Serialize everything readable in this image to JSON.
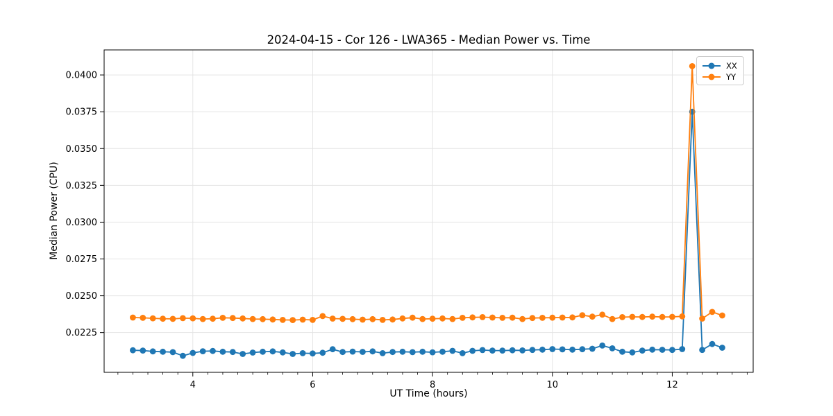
{
  "figure": {
    "title": "2024-04-15 - Cor 126 - LWA365 - Median Power vs. Time"
  },
  "colors": {
    "grid": "#e4e4e4",
    "spine": "#000000",
    "text": "#000000",
    "background": "#ffffff",
    "series_xx": "#1f77b4",
    "series_yy": "#ff7f0e"
  },
  "chart_data": {
    "type": "line",
    "title": "2024-04-15 - Cor 126 - LWA365 - Median Power vs. Time",
    "xlabel": "UT Time (hours)",
    "ylabel": "Median Power (CPU)",
    "xlim": [
      2.52,
      13.35
    ],
    "ylim": [
      0.0198,
      0.0417
    ],
    "grid": true,
    "legend_position": "upper right",
    "xticks": [
      4,
      6,
      8,
      10,
      12
    ],
    "xtick_labels": [
      "4",
      "6",
      "8",
      "10",
      "12"
    ],
    "xtick_minor_step": 0.25,
    "yticks": [
      0.0225,
      0.025,
      0.0275,
      0.03,
      0.0325,
      0.035,
      0.0375,
      0.04
    ],
    "ytick_labels": [
      "0.0225",
      "0.0250",
      "0.0275",
      "0.0300",
      "0.0325",
      "0.0350",
      "0.0375",
      "0.0400"
    ],
    "x": [
      3.0,
      3.1667,
      3.3333,
      3.5,
      3.6667,
      3.8333,
      4.0,
      4.1667,
      4.3333,
      4.5,
      4.6667,
      4.8333,
      5.0,
      5.1667,
      5.3333,
      5.5,
      5.6667,
      5.8333,
      6.0,
      6.1667,
      6.3333,
      6.5,
      6.6667,
      6.8333,
      7.0,
      7.1667,
      7.3333,
      7.5,
      7.6667,
      7.8333,
      8.0,
      8.1667,
      8.3333,
      8.5,
      8.6667,
      8.8333,
      9.0,
      9.1667,
      9.3333,
      9.5,
      9.6667,
      9.8333,
      10.0,
      10.1667,
      10.3333,
      10.5,
      10.6667,
      10.8333,
      11.0,
      11.1667,
      11.3333,
      11.5,
      11.6667,
      11.8333,
      12.0,
      12.1667,
      12.3333,
      12.5,
      12.6667,
      12.8333
    ],
    "series": [
      {
        "name": "XX",
        "color": "#1f77b4",
        "values": [
          0.0213,
          0.02128,
          0.02122,
          0.0212,
          0.02117,
          0.02092,
          0.02112,
          0.02123,
          0.02125,
          0.0212,
          0.02118,
          0.02105,
          0.02114,
          0.0212,
          0.02122,
          0.02115,
          0.02105,
          0.0211,
          0.02108,
          0.02113,
          0.02137,
          0.02118,
          0.02121,
          0.02119,
          0.02122,
          0.0211,
          0.02118,
          0.0212,
          0.02117,
          0.0212,
          0.02116,
          0.0212,
          0.02126,
          0.0211,
          0.02126,
          0.02131,
          0.02128,
          0.02128,
          0.0213,
          0.02129,
          0.02132,
          0.02134,
          0.02138,
          0.02136,
          0.02134,
          0.02137,
          0.0214,
          0.02162,
          0.02143,
          0.0212,
          0.02115,
          0.02128,
          0.02134,
          0.02133,
          0.02132,
          0.02138,
          0.0375,
          0.02132,
          0.02172,
          0.02147
        ]
      },
      {
        "name": "YY",
        "color": "#ff7f0e",
        "values": [
          0.02352,
          0.0235,
          0.02347,
          0.02344,
          0.02343,
          0.02348,
          0.02347,
          0.02342,
          0.02344,
          0.0235,
          0.02349,
          0.02346,
          0.02342,
          0.02341,
          0.02339,
          0.02336,
          0.02335,
          0.02338,
          0.02336,
          0.02362,
          0.02345,
          0.02343,
          0.02341,
          0.02338,
          0.02341,
          0.02336,
          0.02339,
          0.02346,
          0.02351,
          0.02342,
          0.02344,
          0.02346,
          0.02342,
          0.0235,
          0.02353,
          0.02355,
          0.02352,
          0.0235,
          0.02351,
          0.02342,
          0.02349,
          0.0235,
          0.02351,
          0.02352,
          0.02353,
          0.02368,
          0.02358,
          0.02372,
          0.02342,
          0.02355,
          0.02357,
          0.02356,
          0.02358,
          0.02356,
          0.02357,
          0.0236,
          0.0406,
          0.02345,
          0.0239,
          0.02366
        ]
      }
    ]
  }
}
